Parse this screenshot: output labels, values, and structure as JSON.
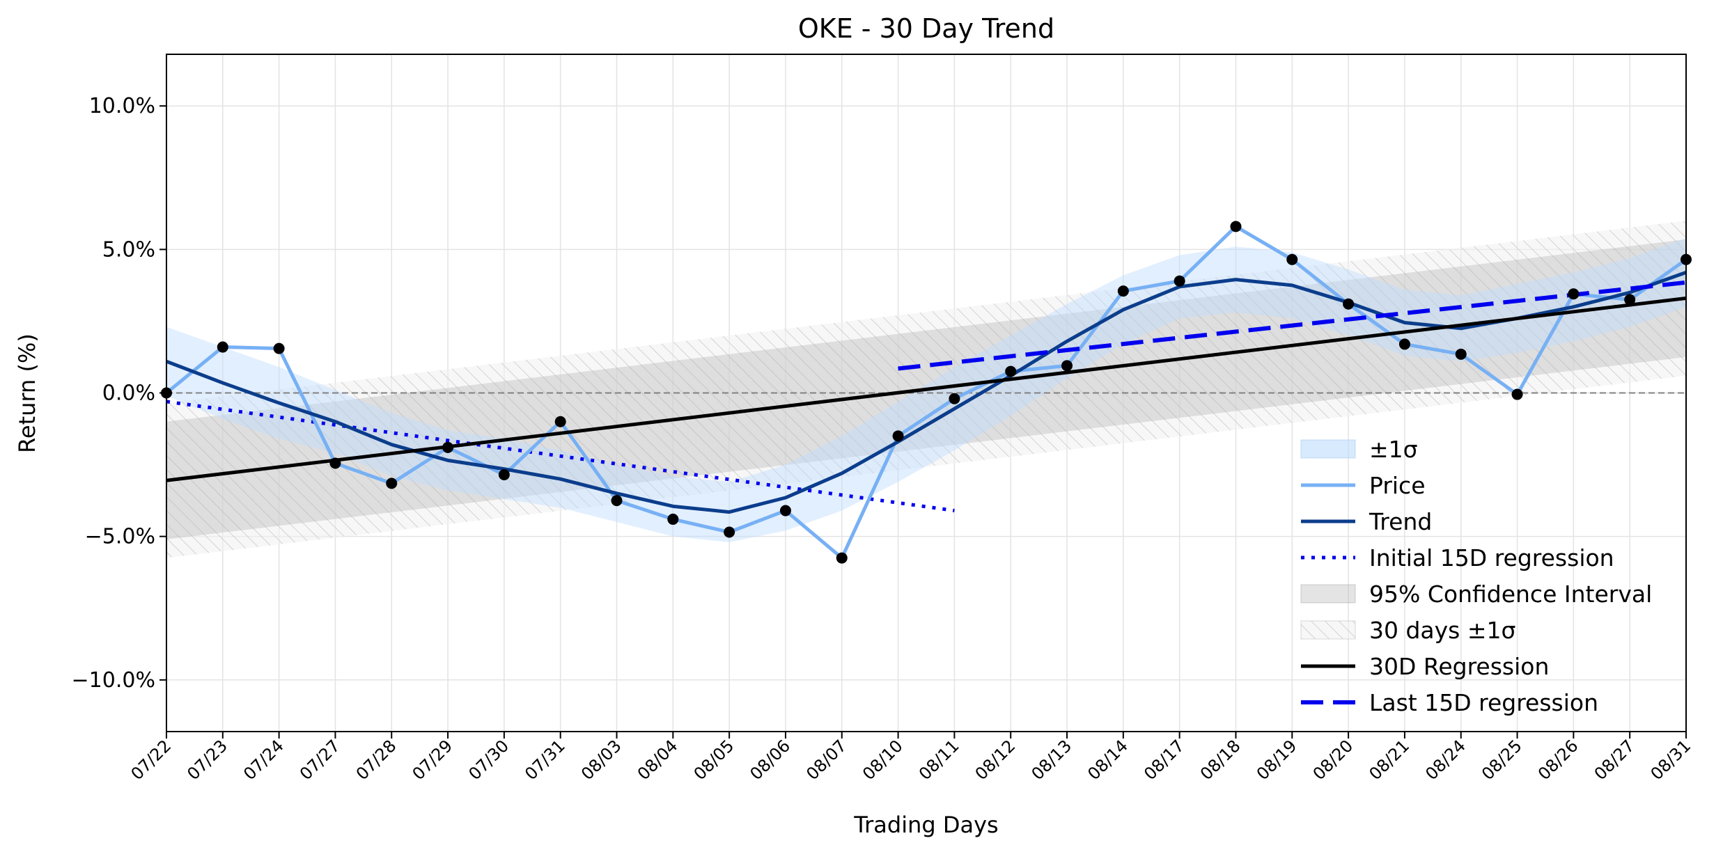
{
  "chart_data": {
    "type": "line",
    "title": "OKE - 30 Day Trend",
    "xlabel": "Trading Days",
    "ylabel": "Return (%)",
    "ylim": [
      -11.8,
      11.8
    ],
    "yticks": [
      -10,
      -5,
      0,
      5,
      10
    ],
    "ytick_labels": [
      "−10.0%",
      "−5.0%",
      "0.0%",
      "5.0%",
      "10.0%"
    ],
    "grid": true,
    "legend_position": "lower-right",
    "categories": [
      "07/22",
      "07/23",
      "07/24",
      "07/27",
      "07/28",
      "07/29",
      "07/30",
      "07/31",
      "08/03",
      "08/04",
      "08/05",
      "08/06",
      "08/07",
      "08/10",
      "08/11",
      "08/12",
      "08/13",
      "08/14",
      "08/17",
      "08/18",
      "08/19",
      "08/20",
      "08/21",
      "08/24",
      "08/25",
      "08/26",
      "08/27",
      "08/31"
    ],
    "series": [
      {
        "name": "Price",
        "color": "#77b0f4",
        "values": [
          0.0,
          1.6,
          1.55,
          -2.45,
          -3.15,
          -1.9,
          -2.85,
          -1.0,
          -3.75,
          -4.4,
          -4.85,
          -4.1,
          -5.75,
          -1.5,
          -0.2,
          0.75,
          0.95,
          3.55,
          3.9,
          5.8,
          4.65,
          3.1,
          1.7,
          1.35,
          -0.05,
          3.45,
          3.25,
          4.65
        ]
      },
      {
        "name": "Trend",
        "color": "#0b3d8c",
        "values": [
          1.1,
          0.35,
          -0.35,
          -1.0,
          -1.8,
          -2.35,
          -2.65,
          -3.0,
          -3.5,
          -3.95,
          -4.15,
          -3.65,
          -2.8,
          -1.7,
          -0.55,
          0.6,
          1.8,
          2.9,
          3.7,
          3.95,
          3.75,
          3.15,
          2.45,
          2.25,
          2.6,
          3.0,
          3.5,
          4.2
        ]
      },
      {
        "name": "±1σ",
        "color": "#dbeafc",
        "upper": [
          2.3,
          1.6,
          0.9,
          0.1,
          -0.7,
          -1.3,
          -1.6,
          -2.0,
          -2.5,
          -2.9,
          -3.1,
          -2.5,
          -1.5,
          -0.3,
          0.9,
          2.0,
          3.1,
          4.1,
          4.8,
          5.1,
          4.9,
          4.3,
          3.6,
          3.4,
          3.8,
          4.2,
          4.7,
          5.4
        ],
        "lower": [
          -0.1,
          -0.9,
          -1.6,
          -2.1,
          -2.9,
          -3.4,
          -3.7,
          -4.0,
          -4.5,
          -5.0,
          -5.2,
          -4.8,
          -4.1,
          -3.1,
          -2.0,
          -0.8,
          0.5,
          1.7,
          2.6,
          2.8,
          2.6,
          2.0,
          1.3,
          1.1,
          1.4,
          1.8,
          2.3,
          3.0
        ]
      },
      {
        "name": "Initial 15D regression",
        "color": "#0000ee",
        "x_range": [
          0,
          14
        ],
        "y_range": [
          -0.3,
          -4.1
        ]
      },
      {
        "name": "Last 15D regression",
        "color": "#0000ee",
        "x_range": [
          13,
          27
        ],
        "y_range": [
          0.85,
          3.85
        ]
      },
      {
        "name": "30D Regression",
        "color": "#000000",
        "x_range": [
          0,
          27
        ],
        "y_range": [
          -3.05,
          3.3
        ]
      },
      {
        "name": "95% Confidence Interval",
        "color": "#e6e6e6",
        "upper_range": [
          -1.0,
          5.35
        ],
        "lower_range": [
          -5.1,
          1.25
        ]
      },
      {
        "name": "30 days ±1σ",
        "color": "#d6d6d6",
        "upper_range": [
          -0.35,
          6.0
        ],
        "lower_range": [
          -5.75,
          0.6
        ]
      }
    ]
  }
}
